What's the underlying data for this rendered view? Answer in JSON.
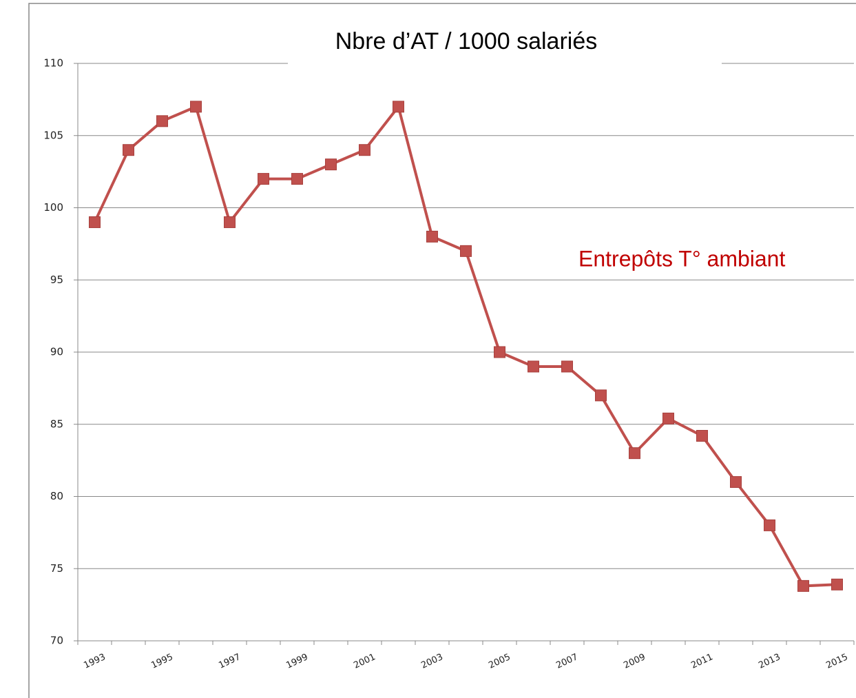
{
  "chart_data": {
    "type": "line",
    "title": "Nbre d’AT / 1000 salariés",
    "annotation": "Entrepôts T° ambiant",
    "categories": [
      "1993",
      null,
      "1995",
      null,
      "1997",
      null,
      "1999",
      null,
      "2001",
      null,
      "2003",
      null,
      "2005",
      null,
      "2007",
      null,
      "2009",
      null,
      "2011",
      null,
      "2013",
      null,
      "2015"
    ],
    "series": [
      {
        "name": "Entrepôts T° ambiant",
        "color": "#c0504d",
        "values": [
          99,
          104,
          106,
          107,
          99,
          102,
          102,
          103,
          104,
          107,
          98,
          97,
          90,
          89,
          89,
          87,
          83,
          85.4,
          84.2,
          81,
          78,
          73.8,
          73.9
        ]
      }
    ],
    "ylim": [
      70,
      110
    ],
    "yticks": [
      70,
      75,
      80,
      85,
      90,
      95,
      100,
      105,
      110
    ],
    "grid": true
  }
}
